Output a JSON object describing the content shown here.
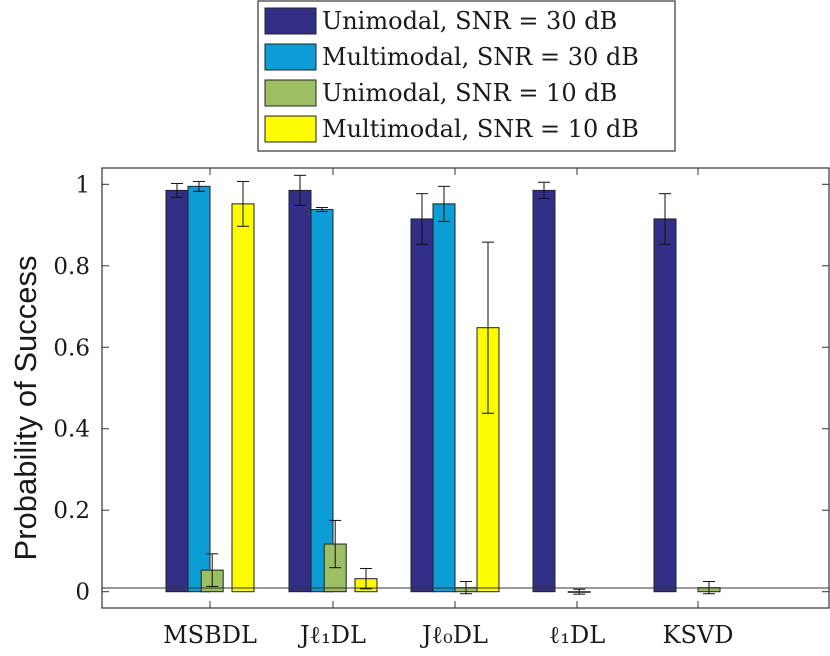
{
  "chart_data": {
    "type": "bar",
    "categories": [
      "MSBDL",
      "Jℓ₁DL",
      "Jℓ₀DL",
      "ℓ₁DL",
      "KSVD"
    ],
    "ylabel": "Probability of Success",
    "xlabel": "",
    "ylim": [
      -0.04,
      1.04
    ],
    "yticks": [
      0,
      0.2,
      0.4,
      0.6,
      0.8,
      1
    ],
    "ytick_labels": [
      "0",
      "0.2",
      "0.4",
      "0.6",
      "0.8",
      "1"
    ],
    "grid": false,
    "legend_position": "top-outside",
    "series": [
      {
        "name": "Unimodal, SNR = 30 dB",
        "color": "#332e86",
        "values": [
          0.985,
          0.985,
          0.915,
          0.985,
          0.915
        ],
        "errors": [
          0.017,
          0.037,
          0.062,
          0.02,
          0.062
        ]
      },
      {
        "name": "Multimodal, SNR = 30 dB",
        "color": "#0d9dd6",
        "values": [
          0.995,
          0.938,
          0.952,
          null,
          null
        ],
        "errors": [
          0.012,
          0.005,
          0.043,
          null,
          null
        ]
      },
      {
        "name": "Unimodal, SNR = 10 dB",
        "color": "#9dbf63",
        "values": [
          0.053,
          0.117,
          0.01,
          0.0,
          0.01
        ],
        "errors": [
          0.04,
          0.058,
          0.015,
          0.006,
          0.015
        ],
        "x_offsets": [
          -0.4,
          -0.4,
          0,
          -0.4,
          0
        ]
      },
      {
        "name": "Multimodal, SNR = 10 dB",
        "color": "#fbfb04",
        "values": [
          0.952,
          0.032,
          0.648,
          null,
          null
        ],
        "errors": [
          0.055,
          0.025,
          0.21,
          null,
          null
        ]
      }
    ]
  }
}
